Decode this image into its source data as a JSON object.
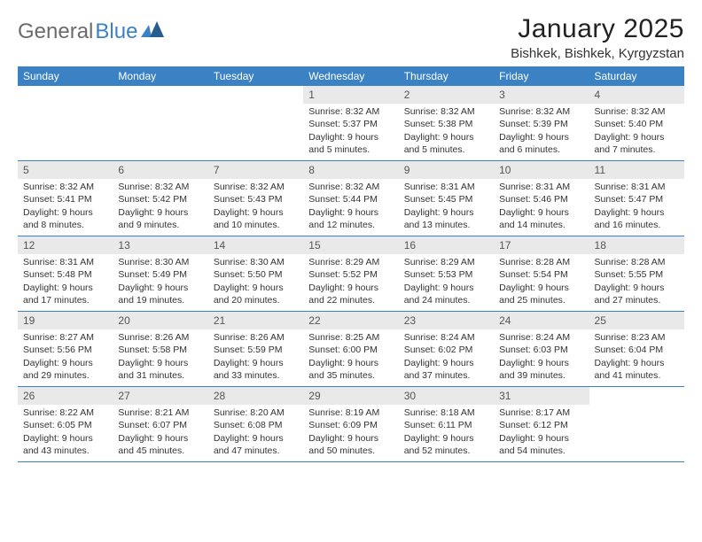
{
  "logo": {
    "text_general": "General",
    "text_blue": "Blue",
    "mark_color": "#3b82c4"
  },
  "header": {
    "month_title": "January 2025",
    "location": "Bishkek, Bishkek, Kyrgyzstan"
  },
  "styling": {
    "header_bg": "#3b82c4",
    "header_text": "#ffffff",
    "daynum_bg": "#e9e9e9",
    "daynum_text": "#555555",
    "body_text": "#333333",
    "border_color": "#3b82c4",
    "page_bg": "#ffffff",
    "font_size_body": 10.5,
    "font_size_daynum": 12,
    "font_size_weekday": 12,
    "font_size_title": 30,
    "font_size_location": 15
  },
  "weekdays": [
    "Sunday",
    "Monday",
    "Tuesday",
    "Wednesday",
    "Thursday",
    "Friday",
    "Saturday"
  ],
  "weeks": [
    [
      {
        "day": "",
        "sunrise": "",
        "sunset": "",
        "daylight": ""
      },
      {
        "day": "",
        "sunrise": "",
        "sunset": "",
        "daylight": ""
      },
      {
        "day": "",
        "sunrise": "",
        "sunset": "",
        "daylight": ""
      },
      {
        "day": "1",
        "sunrise": "Sunrise: 8:32 AM",
        "sunset": "Sunset: 5:37 PM",
        "daylight": "Daylight: 9 hours and 5 minutes."
      },
      {
        "day": "2",
        "sunrise": "Sunrise: 8:32 AM",
        "sunset": "Sunset: 5:38 PM",
        "daylight": "Daylight: 9 hours and 5 minutes."
      },
      {
        "day": "3",
        "sunrise": "Sunrise: 8:32 AM",
        "sunset": "Sunset: 5:39 PM",
        "daylight": "Daylight: 9 hours and 6 minutes."
      },
      {
        "day": "4",
        "sunrise": "Sunrise: 8:32 AM",
        "sunset": "Sunset: 5:40 PM",
        "daylight": "Daylight: 9 hours and 7 minutes."
      }
    ],
    [
      {
        "day": "5",
        "sunrise": "Sunrise: 8:32 AM",
        "sunset": "Sunset: 5:41 PM",
        "daylight": "Daylight: 9 hours and 8 minutes."
      },
      {
        "day": "6",
        "sunrise": "Sunrise: 8:32 AM",
        "sunset": "Sunset: 5:42 PM",
        "daylight": "Daylight: 9 hours and 9 minutes."
      },
      {
        "day": "7",
        "sunrise": "Sunrise: 8:32 AM",
        "sunset": "Sunset: 5:43 PM",
        "daylight": "Daylight: 9 hours and 10 minutes."
      },
      {
        "day": "8",
        "sunrise": "Sunrise: 8:32 AM",
        "sunset": "Sunset: 5:44 PM",
        "daylight": "Daylight: 9 hours and 12 minutes."
      },
      {
        "day": "9",
        "sunrise": "Sunrise: 8:31 AM",
        "sunset": "Sunset: 5:45 PM",
        "daylight": "Daylight: 9 hours and 13 minutes."
      },
      {
        "day": "10",
        "sunrise": "Sunrise: 8:31 AM",
        "sunset": "Sunset: 5:46 PM",
        "daylight": "Daylight: 9 hours and 14 minutes."
      },
      {
        "day": "11",
        "sunrise": "Sunrise: 8:31 AM",
        "sunset": "Sunset: 5:47 PM",
        "daylight": "Daylight: 9 hours and 16 minutes."
      }
    ],
    [
      {
        "day": "12",
        "sunrise": "Sunrise: 8:31 AM",
        "sunset": "Sunset: 5:48 PM",
        "daylight": "Daylight: 9 hours and 17 minutes."
      },
      {
        "day": "13",
        "sunrise": "Sunrise: 8:30 AM",
        "sunset": "Sunset: 5:49 PM",
        "daylight": "Daylight: 9 hours and 19 minutes."
      },
      {
        "day": "14",
        "sunrise": "Sunrise: 8:30 AM",
        "sunset": "Sunset: 5:50 PM",
        "daylight": "Daylight: 9 hours and 20 minutes."
      },
      {
        "day": "15",
        "sunrise": "Sunrise: 8:29 AM",
        "sunset": "Sunset: 5:52 PM",
        "daylight": "Daylight: 9 hours and 22 minutes."
      },
      {
        "day": "16",
        "sunrise": "Sunrise: 8:29 AM",
        "sunset": "Sunset: 5:53 PM",
        "daylight": "Daylight: 9 hours and 24 minutes."
      },
      {
        "day": "17",
        "sunrise": "Sunrise: 8:28 AM",
        "sunset": "Sunset: 5:54 PM",
        "daylight": "Daylight: 9 hours and 25 minutes."
      },
      {
        "day": "18",
        "sunrise": "Sunrise: 8:28 AM",
        "sunset": "Sunset: 5:55 PM",
        "daylight": "Daylight: 9 hours and 27 minutes."
      }
    ],
    [
      {
        "day": "19",
        "sunrise": "Sunrise: 8:27 AM",
        "sunset": "Sunset: 5:56 PM",
        "daylight": "Daylight: 9 hours and 29 minutes."
      },
      {
        "day": "20",
        "sunrise": "Sunrise: 8:26 AM",
        "sunset": "Sunset: 5:58 PM",
        "daylight": "Daylight: 9 hours and 31 minutes."
      },
      {
        "day": "21",
        "sunrise": "Sunrise: 8:26 AM",
        "sunset": "Sunset: 5:59 PM",
        "daylight": "Daylight: 9 hours and 33 minutes."
      },
      {
        "day": "22",
        "sunrise": "Sunrise: 8:25 AM",
        "sunset": "Sunset: 6:00 PM",
        "daylight": "Daylight: 9 hours and 35 minutes."
      },
      {
        "day": "23",
        "sunrise": "Sunrise: 8:24 AM",
        "sunset": "Sunset: 6:02 PM",
        "daylight": "Daylight: 9 hours and 37 minutes."
      },
      {
        "day": "24",
        "sunrise": "Sunrise: 8:24 AM",
        "sunset": "Sunset: 6:03 PM",
        "daylight": "Daylight: 9 hours and 39 minutes."
      },
      {
        "day": "25",
        "sunrise": "Sunrise: 8:23 AM",
        "sunset": "Sunset: 6:04 PM",
        "daylight": "Daylight: 9 hours and 41 minutes."
      }
    ],
    [
      {
        "day": "26",
        "sunrise": "Sunrise: 8:22 AM",
        "sunset": "Sunset: 6:05 PM",
        "daylight": "Daylight: 9 hours and 43 minutes."
      },
      {
        "day": "27",
        "sunrise": "Sunrise: 8:21 AM",
        "sunset": "Sunset: 6:07 PM",
        "daylight": "Daylight: 9 hours and 45 minutes."
      },
      {
        "day": "28",
        "sunrise": "Sunrise: 8:20 AM",
        "sunset": "Sunset: 6:08 PM",
        "daylight": "Daylight: 9 hours and 47 minutes."
      },
      {
        "day": "29",
        "sunrise": "Sunrise: 8:19 AM",
        "sunset": "Sunset: 6:09 PM",
        "daylight": "Daylight: 9 hours and 50 minutes."
      },
      {
        "day": "30",
        "sunrise": "Sunrise: 8:18 AM",
        "sunset": "Sunset: 6:11 PM",
        "daylight": "Daylight: 9 hours and 52 minutes."
      },
      {
        "day": "31",
        "sunrise": "Sunrise: 8:17 AM",
        "sunset": "Sunset: 6:12 PM",
        "daylight": "Daylight: 9 hours and 54 minutes."
      },
      {
        "day": "",
        "sunrise": "",
        "sunset": "",
        "daylight": ""
      }
    ]
  ]
}
